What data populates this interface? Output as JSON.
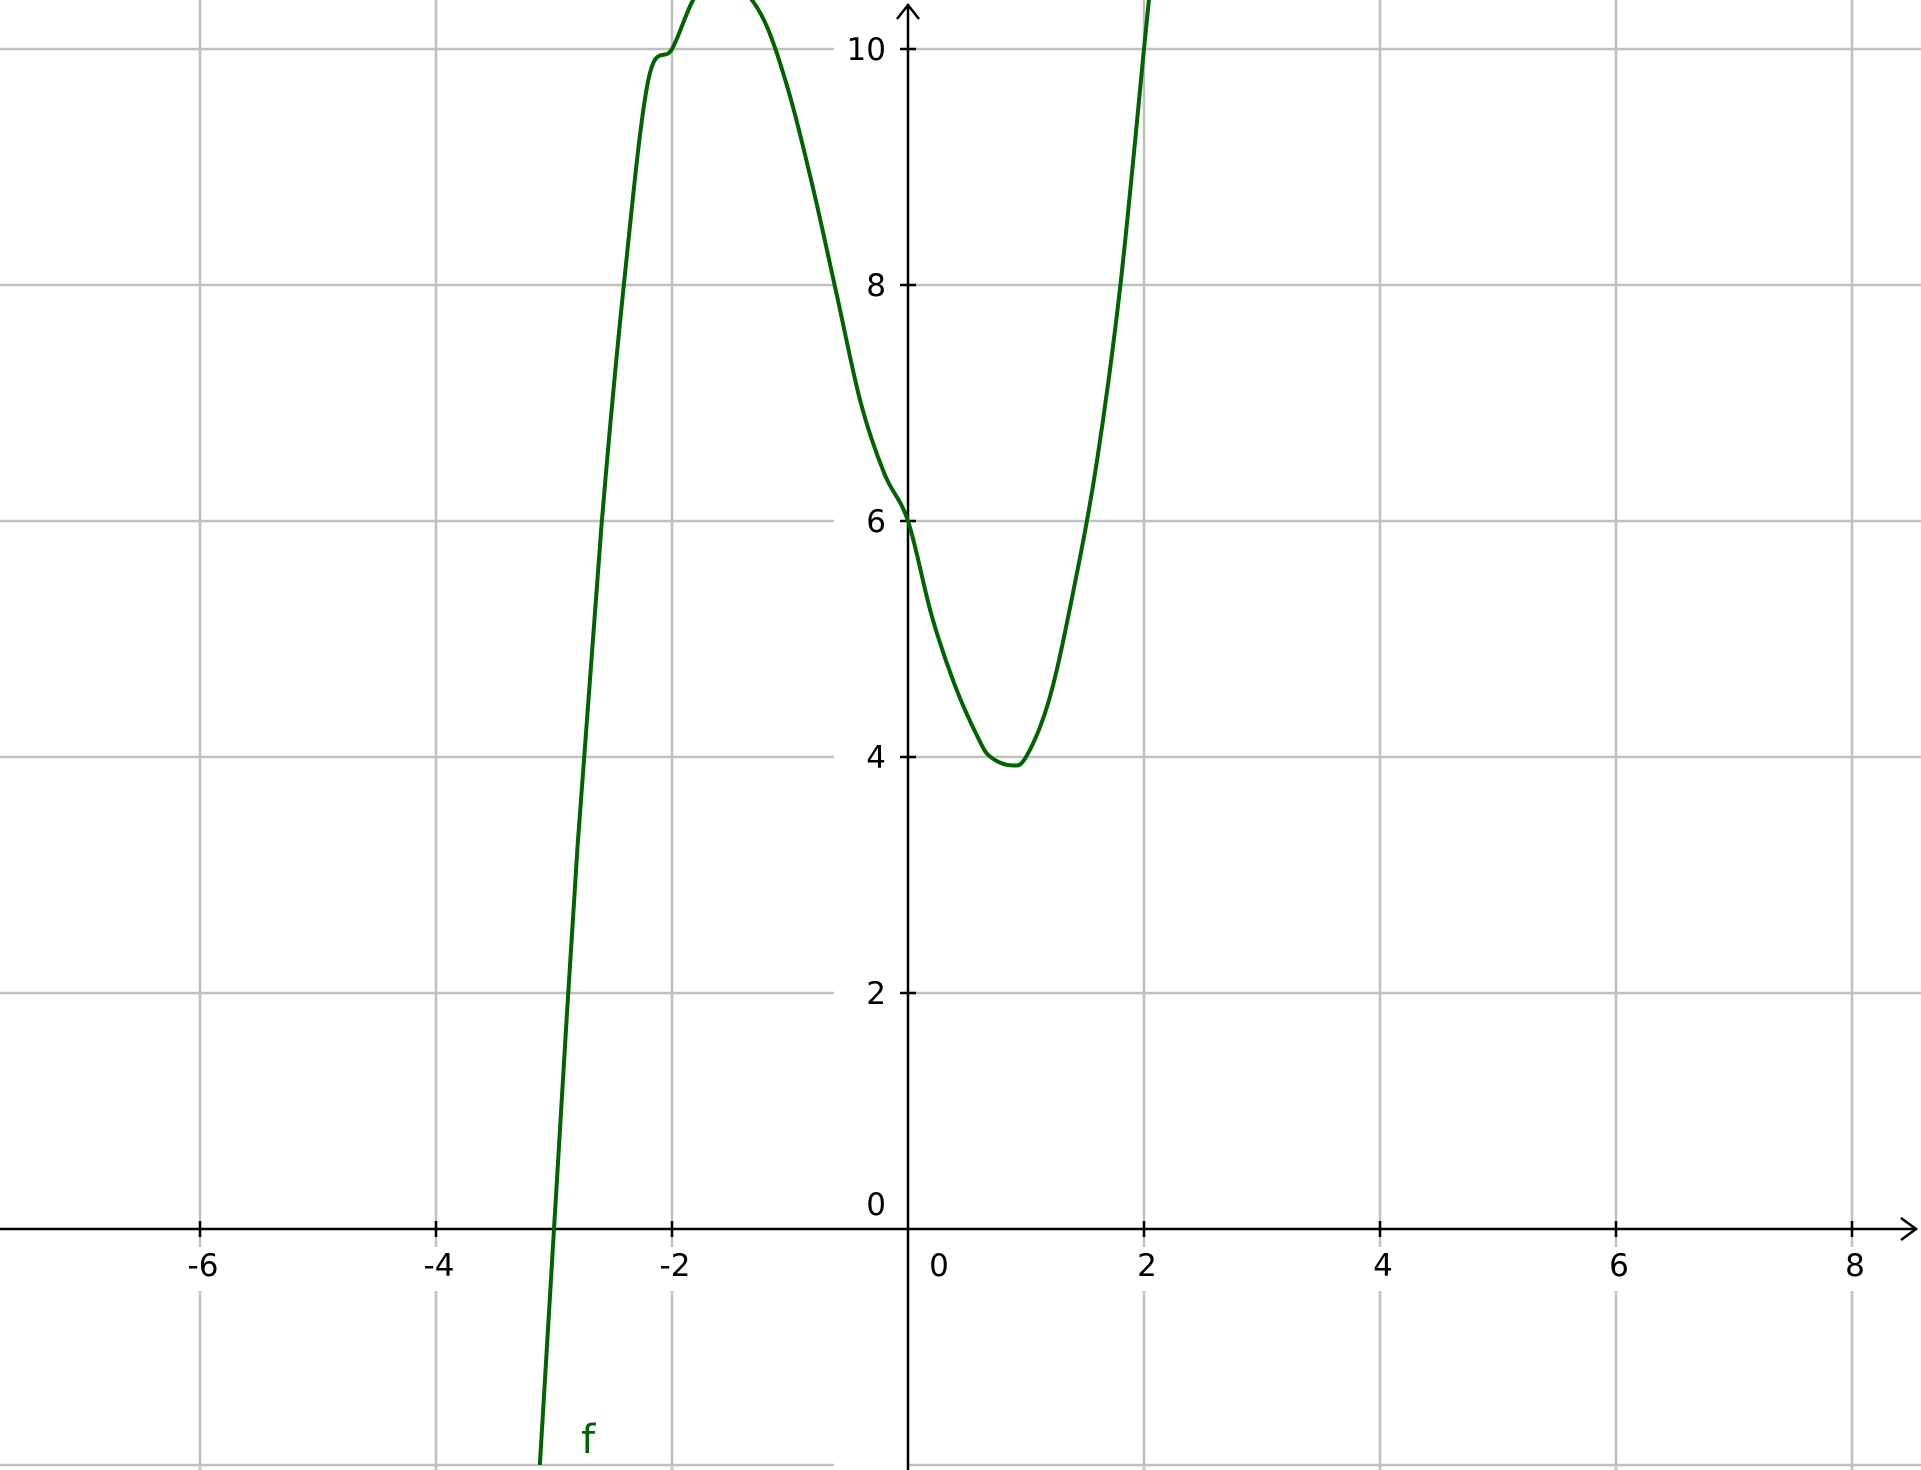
{
  "chart_data": {
    "type": "line",
    "title": "",
    "xlabel": "",
    "ylabel": "",
    "xlim": [
      -7.65,
      8.6
    ],
    "ylim": [
      -2.03,
      10.4
    ],
    "grid": true,
    "x_ticks": [
      -6,
      -4,
      -2,
      0,
      2,
      4,
      6,
      8
    ],
    "x_tick_labels": [
      "-6",
      "-4",
      "-2",
      "0",
      "2",
      "4",
      "6",
      "8"
    ],
    "y_ticks": [
      0,
      2,
      4,
      6,
      8,
      10
    ],
    "y_tick_labels": [
      "0",
      "2",
      "4",
      "6",
      "8",
      "10"
    ],
    "series": [
      {
        "name": "f",
        "color": "#006400",
        "points": [
          [
            -3.12,
            -2.0
          ],
          [
            -3.0,
            0.0
          ],
          [
            -2.8,
            3.25
          ],
          [
            -2.6,
            5.93
          ],
          [
            -2.4,
            8.08
          ],
          [
            -2.2,
            9.74
          ],
          [
            -2.0,
            10.0
          ],
          [
            -1.8,
            10.45
          ],
          [
            -1.6,
            10.55
          ],
          [
            -1.4,
            10.5
          ],
          [
            -1.2,
            10.2
          ],
          [
            -1.0,
            9.6
          ],
          [
            -0.8,
            8.8
          ],
          [
            -0.6,
            7.9
          ],
          [
            -0.4,
            7.0
          ],
          [
            -0.2,
            6.4
          ],
          [
            0.0,
            6.0
          ],
          [
            0.2,
            5.2
          ],
          [
            0.4,
            4.6
          ],
          [
            0.6,
            4.15
          ],
          [
            0.7,
            4.0
          ],
          [
            0.87,
            3.93
          ],
          [
            1.0,
            4.0
          ],
          [
            1.2,
            4.5
          ],
          [
            1.4,
            5.4
          ],
          [
            1.6,
            6.5
          ],
          [
            1.8,
            8.0
          ],
          [
            2.0,
            10.0
          ],
          [
            2.05,
            10.5
          ]
        ],
        "label": "f"
      }
    ]
  }
}
